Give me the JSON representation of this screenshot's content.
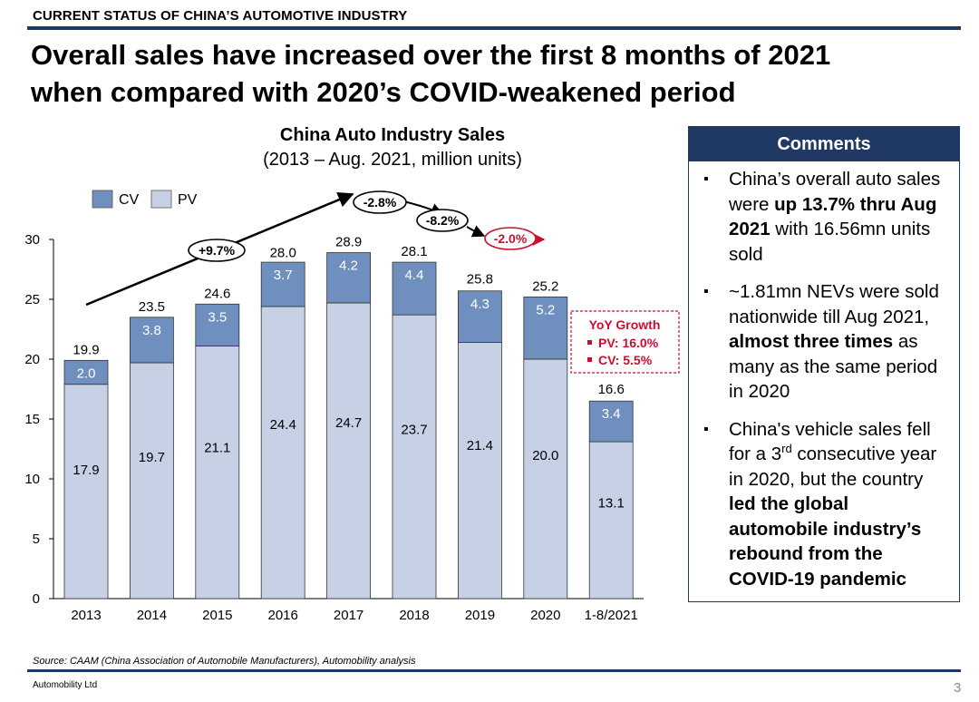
{
  "header": {
    "section": "CURRENT STATUS OF CHINA’S AUTOMOTIVE INDUSTRY",
    "headline_line1": "Overall sales have increased over the first 8 months of 2021",
    "headline_line2": "when compared with 2020’s COVID-weakened period"
  },
  "chart_data": {
    "type": "bar",
    "stacked": true,
    "title": "China Auto Industry Sales",
    "subtitle": "(2013 – Aug. 2021, million units)",
    "categories": [
      "2013",
      "2014",
      "2015",
      "2016",
      "2017",
      "2018",
      "2019",
      "2020",
      "1-8/2021"
    ],
    "series": [
      {
        "name": "PV",
        "values": [
          17.9,
          19.7,
          21.1,
          24.4,
          24.7,
          23.7,
          21.4,
          20.0,
          13.1
        ],
        "color": "#c7d1e6"
      },
      {
        "name": "CV",
        "values": [
          2.0,
          3.8,
          3.5,
          3.7,
          4.2,
          4.4,
          4.3,
          5.2,
          3.4
        ],
        "color": "#6f8fbf"
      }
    ],
    "totals": [
      19.9,
      23.5,
      24.6,
      28.0,
      28.9,
      28.1,
      25.8,
      25.2,
      16.6
    ],
    "ylim": [
      0,
      30
    ],
    "yticks": [
      0,
      5,
      10,
      15,
      20,
      25,
      30
    ],
    "legend": "top-left",
    "growth_labels": [
      {
        "text": "+9.7%",
        "color": "#000000"
      },
      {
        "text": "-2.8%",
        "color": "#000000"
      },
      {
        "text": "-8.2%",
        "color": "#000000"
      },
      {
        "text": "-2.0%",
        "color": "#c8102e"
      }
    ],
    "yoy_box": {
      "title": "YoY Growth",
      "items": [
        "PV: 16.0%",
        "CV: 5.5%"
      ],
      "color": "#c8102e"
    }
  },
  "comments": {
    "title": "Comments",
    "items": [
      [
        {
          "t": "China’s overall auto sales were "
        },
        {
          "t": "up 13.7% thru Aug 2021",
          "b": true
        },
        {
          "t": " with 16.56mn units sold"
        }
      ],
      [
        {
          "t": "~1.81mn NEVs were sold nationwide till Aug 2021, "
        },
        {
          "t": "almost three times",
          "b": true
        },
        {
          "t": " as many as the same period in 2020"
        }
      ],
      [
        {
          "t": "China's vehicle sales fell for a 3"
        },
        {
          "t": "rd",
          "sup": true
        },
        {
          "t": " consecutive year in 2020, but the country "
        },
        {
          "t": "led the global automobile industry’s rebound from the COVID-19 pandemic",
          "b": true
        }
      ]
    ]
  },
  "footer": {
    "source": "Source: CAAM (China Association of Automobile Manufacturers), Automobility analysis",
    "company": "Automobility Ltd",
    "page": "3"
  }
}
